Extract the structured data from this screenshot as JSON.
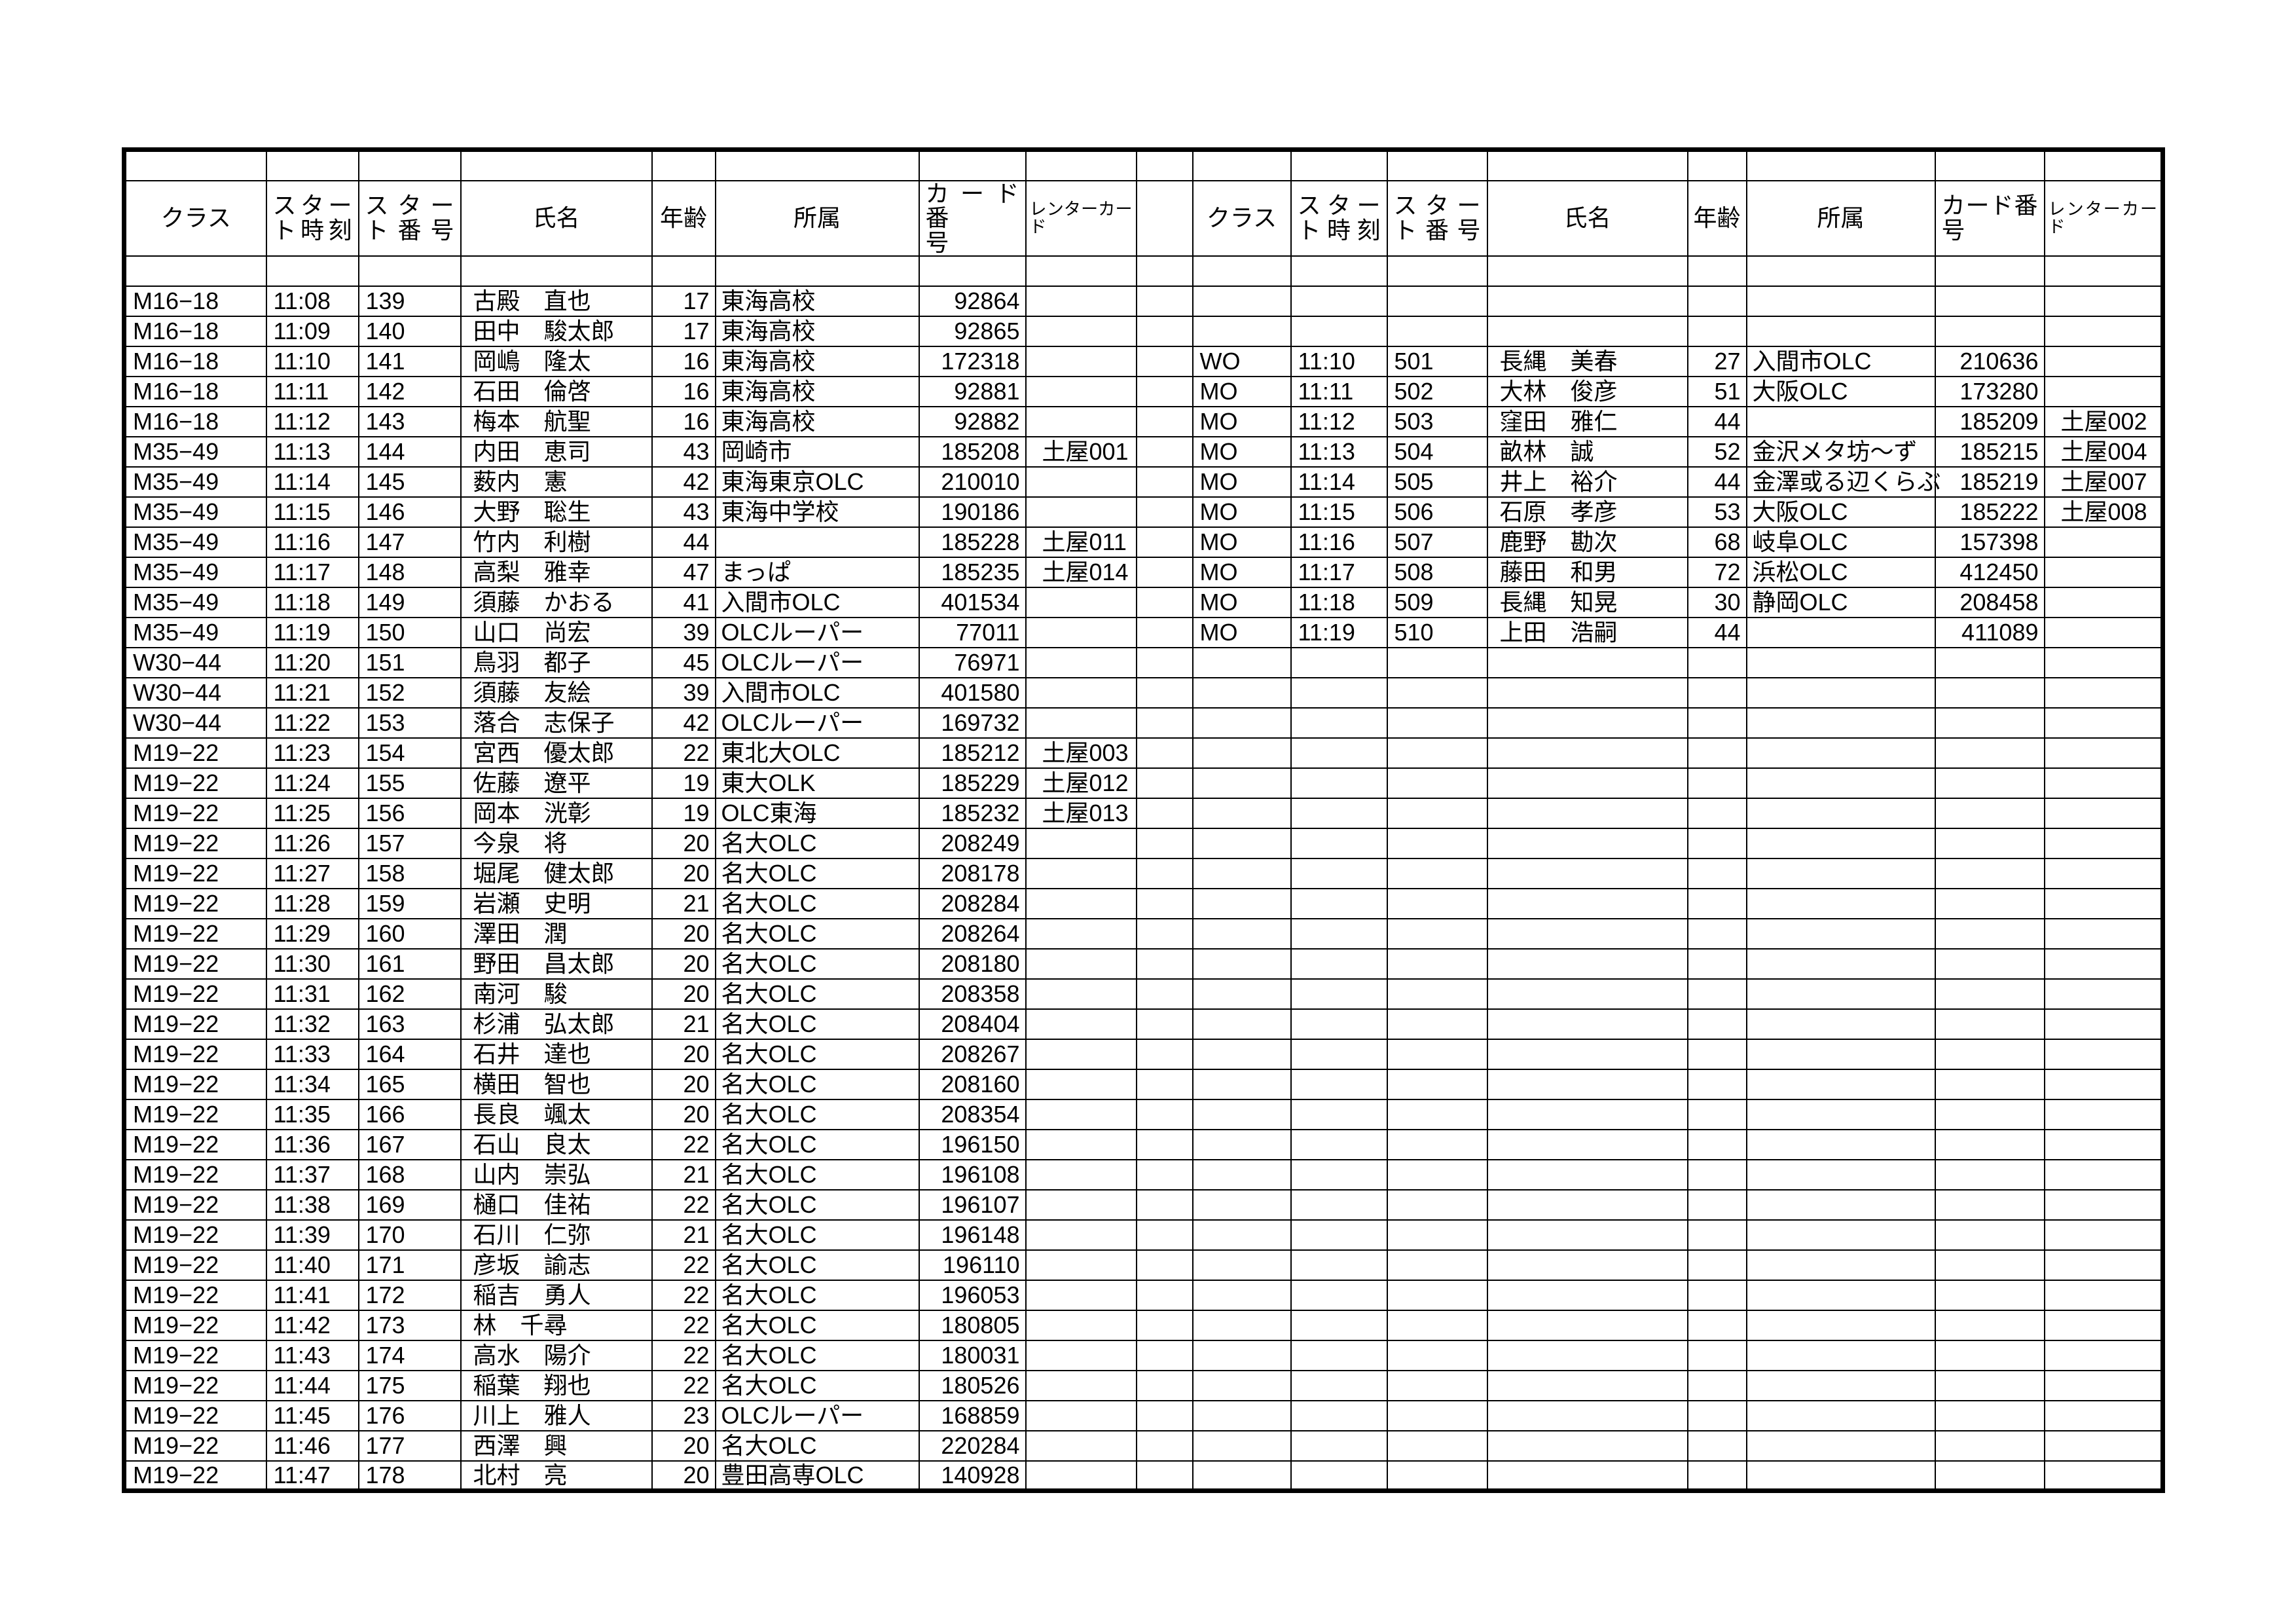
{
  "headers": {
    "class": "クラス",
    "start_time": "スター\nト時刻",
    "start_number": "スター\nト番号",
    "name": "氏名",
    "age": "年齢",
    "club": "所属",
    "card_number": "カード番\n号",
    "rental_card": "レンターカー\nド"
  },
  "left_rows": [
    {
      "class": "M16−18",
      "time": "11:08",
      "bib": "139",
      "name": "古殿　直也",
      "age": "17",
      "club": "東海高校",
      "card": "92864",
      "rental": ""
    },
    {
      "class": "M16−18",
      "time": "11:09",
      "bib": "140",
      "name": "田中　駿太郎",
      "age": "17",
      "club": "東海高校",
      "card": "92865",
      "rental": ""
    },
    {
      "class": "M16−18",
      "time": "11:10",
      "bib": "141",
      "name": "岡嶋　隆太",
      "age": "16",
      "club": "東海高校",
      "card": "172318",
      "rental": ""
    },
    {
      "class": "M16−18",
      "time": "11:11",
      "bib": "142",
      "name": "石田　倫啓",
      "age": "16",
      "club": "東海高校",
      "card": "92881",
      "rental": ""
    },
    {
      "class": "M16−18",
      "time": "11:12",
      "bib": "143",
      "name": "梅本　航聖",
      "age": "16",
      "club": "東海高校",
      "card": "92882",
      "rental": ""
    },
    {
      "class": "M35−49",
      "time": "11:13",
      "bib": "144",
      "name": "内田　恵司",
      "age": "43",
      "club": "岡崎市",
      "card": "185208",
      "rental": "土屋001"
    },
    {
      "class": "M35−49",
      "time": "11:14",
      "bib": "145",
      "name": "薮内　憲",
      "age": "42",
      "club": "東海東京OLC",
      "card": "210010",
      "rental": ""
    },
    {
      "class": "M35−49",
      "time": "11:15",
      "bib": "146",
      "name": "大野　聡生",
      "age": "43",
      "club": "東海中学校",
      "card": "190186",
      "rental": ""
    },
    {
      "class": "M35−49",
      "time": "11:16",
      "bib": "147",
      "name": "竹内　利樹",
      "age": "44",
      "club": "",
      "card": "185228",
      "rental": "土屋011"
    },
    {
      "class": "M35−49",
      "time": "11:17",
      "bib": "148",
      "name": "高梨　雅幸",
      "age": "47",
      "club": "まっぱ",
      "card": "185235",
      "rental": "土屋014"
    },
    {
      "class": "M35−49",
      "time": "11:18",
      "bib": "149",
      "name": "須藤　かおる",
      "age": "41",
      "club": "入間市OLC",
      "card": "401534",
      "rental": ""
    },
    {
      "class": "M35−49",
      "time": "11:19",
      "bib": "150",
      "name": "山口　尚宏",
      "age": "39",
      "club": "OLCルーパー",
      "card": "77011",
      "rental": ""
    },
    {
      "class": "W30−44",
      "time": "11:20",
      "bib": "151",
      "name": "鳥羽　都子",
      "age": "45",
      "club": "OLCルーパー",
      "card": "76971",
      "rental": ""
    },
    {
      "class": "W30−44",
      "time": "11:21",
      "bib": "152",
      "name": "須藤　友絵",
      "age": "39",
      "club": "入間市OLC",
      "card": "401580",
      "rental": ""
    },
    {
      "class": "W30−44",
      "time": "11:22",
      "bib": "153",
      "name": "落合　志保子",
      "age": "42",
      "club": "OLCルーパー",
      "card": "169732",
      "rental": ""
    },
    {
      "class": "M19−22",
      "time": "11:23",
      "bib": "154",
      "name": "宮西　優太郎",
      "age": "22",
      "club": "東北大OLC",
      "card": "185212",
      "rental": "土屋003"
    },
    {
      "class": "M19−22",
      "time": "11:24",
      "bib": "155",
      "name": "佐藤　遼平",
      "age": "19",
      "club": "東大OLK",
      "card": "185229",
      "rental": "土屋012"
    },
    {
      "class": "M19−22",
      "time": "11:25",
      "bib": "156",
      "name": "岡本　洸彰",
      "age": "19",
      "club": "OLC東海",
      "card": "185232",
      "rental": "土屋013"
    },
    {
      "class": "M19−22",
      "time": "11:26",
      "bib": "157",
      "name": "今泉　将",
      "age": "20",
      "club": "名大OLC",
      "card": "208249",
      "rental": ""
    },
    {
      "class": "M19−22",
      "time": "11:27",
      "bib": "158",
      "name": "堀尾　健太郎",
      "age": "20",
      "club": "名大OLC",
      "card": "208178",
      "rental": ""
    },
    {
      "class": "M19−22",
      "time": "11:28",
      "bib": "159",
      "name": "岩瀬　史明",
      "age": "21",
      "club": "名大OLC",
      "card": "208284",
      "rental": ""
    },
    {
      "class": "M19−22",
      "time": "11:29",
      "bib": "160",
      "name": "澤田　潤",
      "age": "20",
      "club": "名大OLC",
      "card": "208264",
      "rental": ""
    },
    {
      "class": "M19−22",
      "time": "11:30",
      "bib": "161",
      "name": "野田　昌太郎",
      "age": "20",
      "club": "名大OLC",
      "card": "208180",
      "rental": ""
    },
    {
      "class": "M19−22",
      "time": "11:31",
      "bib": "162",
      "name": "南河　駿",
      "age": "20",
      "club": "名大OLC",
      "card": "208358",
      "rental": ""
    },
    {
      "class": "M19−22",
      "time": "11:32",
      "bib": "163",
      "name": "杉浦　弘太郎",
      "age": "21",
      "club": "名大OLC",
      "card": "208404",
      "rental": ""
    },
    {
      "class": "M19−22",
      "time": "11:33",
      "bib": "164",
      "name": "石井　達也",
      "age": "20",
      "club": "名大OLC",
      "card": "208267",
      "rental": ""
    },
    {
      "class": "M19−22",
      "time": "11:34",
      "bib": "165",
      "name": "横田　智也",
      "age": "20",
      "club": "名大OLC",
      "card": "208160",
      "rental": ""
    },
    {
      "class": "M19−22",
      "time": "11:35",
      "bib": "166",
      "name": "長良　颯太",
      "age": "20",
      "club": "名大OLC",
      "card": "208354",
      "rental": ""
    },
    {
      "class": "M19−22",
      "time": "11:36",
      "bib": "167",
      "name": "石山　良太",
      "age": "22",
      "club": "名大OLC",
      "card": "196150",
      "rental": ""
    },
    {
      "class": "M19−22",
      "time": "11:37",
      "bib": "168",
      "name": "山内　崇弘",
      "age": "21",
      "club": "名大OLC",
      "card": "196108",
      "rental": ""
    },
    {
      "class": "M19−22",
      "time": "11:38",
      "bib": "169",
      "name": "樋口　佳祐",
      "age": "22",
      "club": "名大OLC",
      "card": "196107",
      "rental": ""
    },
    {
      "class": "M19−22",
      "time": "11:39",
      "bib": "170",
      "name": "石川　仁弥",
      "age": "21",
      "club": "名大OLC",
      "card": "196148",
      "rental": ""
    },
    {
      "class": "M19−22",
      "time": "11:40",
      "bib": "171",
      "name": "彦坂　諭志",
      "age": "22",
      "club": "名大OLC",
      "card": "196110",
      "rental": ""
    },
    {
      "class": "M19−22",
      "time": "11:41",
      "bib": "172",
      "name": "稲吉　勇人",
      "age": "22",
      "club": "名大OLC",
      "card": "196053",
      "rental": ""
    },
    {
      "class": "M19−22",
      "time": "11:42",
      "bib": "173",
      "name": "林　千尋",
      "age": "22",
      "club": "名大OLC",
      "card": "180805",
      "rental": ""
    },
    {
      "class": "M19−22",
      "time": "11:43",
      "bib": "174",
      "name": "高水　陽介",
      "age": "22",
      "club": "名大OLC",
      "card": "180031",
      "rental": ""
    },
    {
      "class": "M19−22",
      "time": "11:44",
      "bib": "175",
      "name": "稲葉　翔也",
      "age": "22",
      "club": "名大OLC",
      "card": "180526",
      "rental": ""
    },
    {
      "class": "M19−22",
      "time": "11:45",
      "bib": "176",
      "name": "川上　雅人",
      "age": "23",
      "club": "OLCルーパー",
      "card": "168859",
      "rental": ""
    },
    {
      "class": "M19−22",
      "time": "11:46",
      "bib": "177",
      "name": "西澤　興",
      "age": "20",
      "club": "名大OLC",
      "card": "220284",
      "rental": ""
    },
    {
      "class": "M19−22",
      "time": "11:47",
      "bib": "178",
      "name": "北村　亮",
      "age": "20",
      "club": "豊田高専OLC",
      "card": "140928",
      "rental": ""
    }
  ],
  "right_rows": [
    {
      "class": "WO",
      "time": "11:10",
      "bib": "501",
      "name": "長縄　美春",
      "age": "27",
      "club": "入間市OLC",
      "card": "210636",
      "rental": ""
    },
    {
      "class": "MO",
      "time": "11:11",
      "bib": "502",
      "name": "大林　俊彦",
      "age": "51",
      "club": "大阪OLC",
      "card": "173280",
      "rental": ""
    },
    {
      "class": "MO",
      "time": "11:12",
      "bib": "503",
      "name": "窪田　雅仁",
      "age": "44",
      "club": "",
      "card": "185209",
      "rental": "土屋002"
    },
    {
      "class": "MO",
      "time": "11:13",
      "bib": "504",
      "name": "畝林　誠",
      "age": "52",
      "club": "金沢メタ坊～ず",
      "card": "185215",
      "rental": "土屋004"
    },
    {
      "class": "MO",
      "time": "11:14",
      "bib": "505",
      "name": "井上　裕介",
      "age": "44",
      "club": "金澤或る辺くらぶ",
      "card": "185219",
      "rental": "土屋007"
    },
    {
      "class": "MO",
      "time": "11:15",
      "bib": "506",
      "name": "石原　孝彦",
      "age": "53",
      "club": "大阪OLC",
      "card": "185222",
      "rental": "土屋008"
    },
    {
      "class": "MO",
      "time": "11:16",
      "bib": "507",
      "name": "鹿野　勘次",
      "age": "68",
      "club": "岐阜OLC",
      "card": "157398",
      "rental": ""
    },
    {
      "class": "MO",
      "time": "11:17",
      "bib": "508",
      "name": "藤田　和男",
      "age": "72",
      "club": "浜松OLC",
      "card": "412450",
      "rental": ""
    },
    {
      "class": "MO",
      "time": "11:18",
      "bib": "509",
      "name": "長縄　知晃",
      "age": "30",
      "club": "静岡OLC",
      "card": "208458",
      "rental": ""
    },
    {
      "class": "MO",
      "time": "11:19",
      "bib": "510",
      "name": "上田　浩嗣",
      "age": "44",
      "club": "",
      "card": "411089",
      "rental": ""
    }
  ]
}
